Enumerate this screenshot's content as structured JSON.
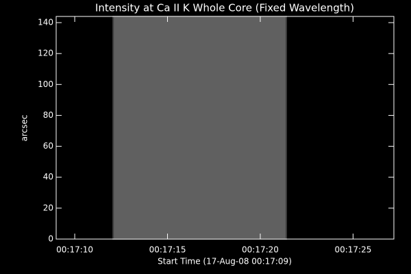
{
  "chart_data": {
    "type": "image",
    "title": "Intensity at Ca II K Whole Core (Fixed Wavelength)",
    "xlabel": "Start Time (17-Aug-08 00:17:09)",
    "ylabel": "arcsec",
    "xlim": [
      0,
      18.2
    ],
    "ylim": [
      0,
      144
    ],
    "xticks": [
      {
        "value": 1,
        "label": "00:17:10"
      },
      {
        "value": 6,
        "label": "00:17:15"
      },
      {
        "value": 11,
        "label": "00:17:20"
      },
      {
        "value": 16,
        "label": "00:17:25"
      }
    ],
    "yticks": [
      0,
      20,
      40,
      60,
      80,
      100,
      120,
      140
    ],
    "image": {
      "x": [
        3.07,
        12.4
      ],
      "y": [
        0,
        144
      ],
      "color": "#606060",
      "edge_color": "#404040"
    }
  }
}
